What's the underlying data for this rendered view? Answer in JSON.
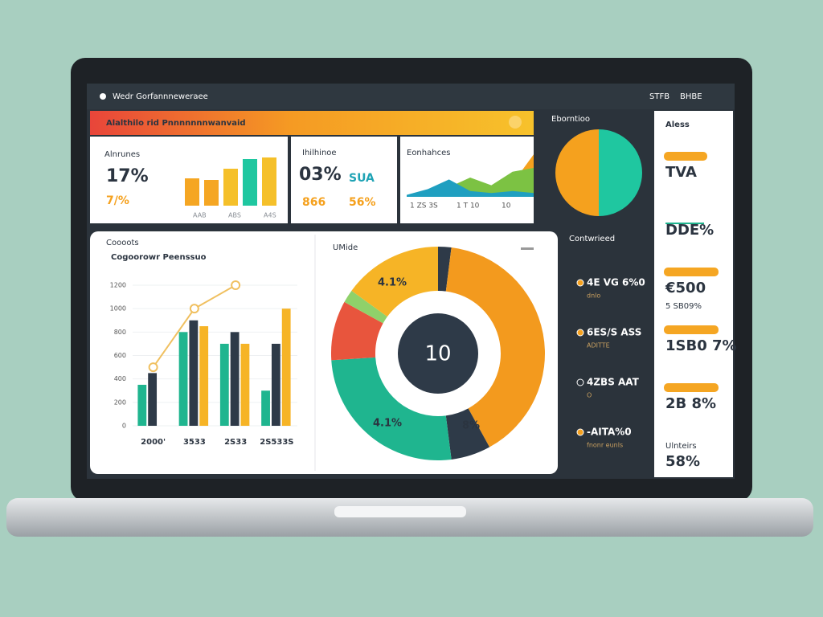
{
  "top_bar": {
    "title": "Wedr Gorfannneweraee",
    "links": [
      "STFB",
      "BHBE"
    ]
  },
  "banner": {
    "title": "Alalthilo rid Pnnnnnnnwanvaid"
  },
  "card_1": {
    "label": "Alnrunes",
    "value": "17%",
    "sub": "7/%",
    "bars": [
      34,
      32,
      46,
      58,
      60
    ],
    "colors": [
      "#f5a623",
      "#f5a623",
      "#f5c02a",
      "#1fc7a0",
      "#f5c02a"
    ],
    "x_labels": [
      "AAB",
      "ABS",
      "A4S"
    ]
  },
  "card_2": {
    "label": "Ihilhinoe",
    "value": "03%",
    "value_2": "SUA",
    "sub": "866",
    "sub_2": "56%"
  },
  "card_3": {
    "label": "Eonhahces",
    "area": {
      "series": [
        {
          "color": "#f5a11e",
          "values": [
            0,
            0,
            0,
            0,
            0,
            14,
            44
          ]
        },
        {
          "color": "#7cc243",
          "values": [
            2,
            6,
            10,
            20,
            12,
            26,
            30
          ]
        },
        {
          "color": "#1f9fc0",
          "values": [
            2,
            8,
            18,
            6,
            4,
            6,
            4
          ]
        }
      ]
    },
    "x_labels": [
      "1 ZS 3S",
      "1 T 10",
      "10"
    ]
  },
  "side_panel": {
    "title": "Eborntioo",
    "pie": {
      "values": [
        50,
        50
      ],
      "colors": [
        "#1fc7a0",
        "#f5a11e"
      ]
    },
    "subtitle": "Contwrieed",
    "items": [
      {
        "label": "4E VG 6%0",
        "note": "dnlo"
      },
      {
        "label": "6ES/S ASS",
        "note": "ADITTE"
      },
      {
        "label": "4ZBS AAT",
        "note": "O"
      },
      {
        "label": "-AITA%0",
        "note": "fnonr eunls"
      }
    ]
  },
  "stats_panel": {
    "title": "Aless",
    "items": [
      {
        "value": "TVA"
      },
      {
        "value": "DDE%"
      },
      {
        "value": "€500",
        "sub": "5 SB09%"
      },
      {
        "value": "1SB0 7%"
      },
      {
        "value": "2B 8%"
      },
      {
        "value": "58%",
        "sub": "Ulnteirs"
      }
    ]
  },
  "chart_data": [
    {
      "type": "bar",
      "title": "Coooots",
      "subtitle": "Cogoorowr Peenssuo",
      "categories": [
        "2000'",
        "3533",
        "2S33",
        "2S533S"
      ],
      "series": [
        {
          "color": "#1fb58f",
          "values": [
            350,
            800,
            700,
            300
          ]
        },
        {
          "color": "#2e3a48",
          "values": [
            450,
            900,
            800,
            700
          ]
        },
        {
          "color": "#f6b426",
          "values": [
            null,
            850,
            700,
            1000
          ]
        }
      ],
      "line": {
        "color": "#f0c060",
        "values": [
          500,
          1000,
          1200,
          null
        ]
      },
      "ylim": [
        0,
        1200
      ],
      "yticks": [
        0,
        200,
        400,
        600,
        800,
        1000,
        1200
      ]
    },
    {
      "type": "donut",
      "title": "UMide",
      "center_label": "10",
      "values": [
        2,
        40,
        6,
        26,
        9,
        2,
        15
      ],
      "colors": [
        "#2e3a48",
        "#f39a1e",
        "#2e3a48",
        "#1fb58f",
        "#e8553d",
        "#8fd16a",
        "#f6b426"
      ],
      "annotations": [
        "4.1%",
        "4.1%",
        "8%"
      ]
    }
  ]
}
